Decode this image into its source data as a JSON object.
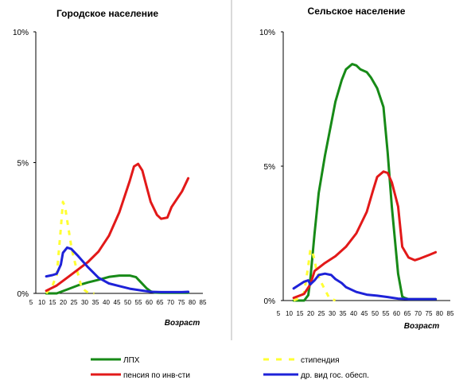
{
  "chart_data": [
    {
      "type": "line",
      "title": "Городское население",
      "xlabel": "Возраст",
      "ylabel": "",
      "xlim": [
        5,
        85
      ],
      "ylim": [
        0,
        10
      ],
      "x_ticks": [
        "5",
        "10",
        "15",
        "20",
        "25",
        "30",
        "35",
        "40",
        "45",
        "50",
        "55",
        "60",
        "65",
        "70",
        "75",
        "80",
        "85"
      ],
      "y_ticks": [
        {
          "value": 0,
          "label": "0%"
        },
        {
          "value": 5,
          "label": "5%"
        },
        {
          "value": 10,
          "label": "10%"
        }
      ],
      "series": [
        {
          "key": "lph",
          "name": "ЛПХ",
          "x": [
            10,
            15,
            20,
            25,
            30,
            35,
            40,
            45,
            50,
            53,
            55,
            58,
            60,
            62,
            65,
            70,
            75,
            78
          ],
          "y": [
            0,
            0,
            0.15,
            0.3,
            0.42,
            0.52,
            0.63,
            0.68,
            0.68,
            0.62,
            0.45,
            0.2,
            0.08,
            0.03,
            0.02,
            0.02,
            0.02,
            0.02
          ]
        },
        {
          "key": "stipend",
          "name": "стипендия",
          "x": [
            10,
            13,
            15,
            17,
            18,
            19,
            20,
            21,
            22,
            23,
            25,
            27,
            30,
            33
          ],
          "y": [
            0,
            0.3,
            0.7,
            2.5,
            3.5,
            3.3,
            2.8,
            2.3,
            1.8,
            1.4,
            0.8,
            0.2,
            0.03,
            0
          ]
        },
        {
          "key": "pension",
          "name": "пенсия по инв-сти",
          "x": [
            10,
            15,
            20,
            25,
            30,
            35,
            40,
            45,
            50,
            52,
            54,
            56,
            58,
            60,
            63,
            65,
            68,
            70,
            75,
            78
          ],
          "y": [
            0.1,
            0.3,
            0.6,
            0.9,
            1.2,
            1.6,
            2.2,
            3.1,
            4.3,
            4.85,
            4.95,
            4.7,
            4.1,
            3.5,
            3.0,
            2.85,
            2.9,
            3.3,
            3.9,
            4.4
          ]
        },
        {
          "key": "other",
          "name": "др. вид гос. обесп.",
          "x": [
            10,
            13,
            15,
            17,
            18,
            20,
            22,
            25,
            30,
            35,
            40,
            45,
            50,
            55,
            60,
            65,
            70,
            75,
            78
          ],
          "y": [
            0.65,
            0.7,
            0.75,
            1.1,
            1.55,
            1.75,
            1.7,
            1.45,
            1.0,
            0.6,
            0.38,
            0.28,
            0.18,
            0.12,
            0.06,
            0.05,
            0.05,
            0.05,
            0.06
          ]
        }
      ]
    },
    {
      "type": "line",
      "title": "Сельское население",
      "xlabel": "Возраст",
      "ylabel": "",
      "xlim": [
        5,
        85
      ],
      "ylim": [
        0,
        10
      ],
      "x_ticks": [
        "5",
        "10",
        "15",
        "20",
        "25",
        "30",
        "35",
        "40",
        "45",
        "50",
        "55",
        "60",
        "65",
        "70",
        "75",
        "80",
        "85"
      ],
      "y_ticks": [
        {
          "value": 0,
          "label": "0%"
        },
        {
          "value": 5,
          "label": "5%"
        },
        {
          "value": 10,
          "label": "10%"
        }
      ],
      "series": [
        {
          "key": "lph",
          "name": "ЛПХ",
          "x": [
            10,
            15,
            17,
            18,
            20,
            22,
            25,
            28,
            30,
            33,
            35,
            38,
            40,
            42,
            45,
            47,
            50,
            53,
            55,
            57,
            60,
            62,
            63,
            65,
            70,
            78
          ],
          "y": [
            0,
            0,
            0.2,
            0.8,
            2.5,
            4,
            5.4,
            6.6,
            7.4,
            8.2,
            8.6,
            8.8,
            8.75,
            8.6,
            8.5,
            8.3,
            7.9,
            7.2,
            5.5,
            3.5,
            1.0,
            0.15,
            0.1,
            0.05,
            0.05,
            0.05
          ]
        },
        {
          "key": "stipend",
          "name": "стипендия",
          "x": [
            10,
            13,
            15,
            17,
            18,
            19,
            20,
            21,
            22,
            23,
            25,
            27,
            30
          ],
          "y": [
            0,
            0.1,
            0.3,
            1.3,
            1.9,
            1.8,
            1.5,
            1.1,
            0.9,
            0.7,
            0.4,
            0.1,
            0
          ]
        },
        {
          "key": "pension",
          "name": "пенсия по инв-сти",
          "x": [
            10,
            15,
            18,
            20,
            25,
            30,
            35,
            40,
            45,
            48,
            50,
            53,
            55,
            57,
            60,
            62,
            65,
            68,
            70,
            75,
            78
          ],
          "y": [
            0.1,
            0.25,
            0.6,
            1.1,
            1.4,
            1.65,
            2.0,
            2.5,
            3.3,
            4.1,
            4.6,
            4.8,
            4.75,
            4.4,
            3.5,
            2.0,
            1.6,
            1.5,
            1.55,
            1.7,
            1.8
          ]
        },
        {
          "key": "other",
          "name": "др. вид гос. обесп.",
          "x": [
            10,
            12,
            15,
            17,
            18,
            20,
            22,
            25,
            28,
            30,
            33,
            35,
            40,
            45,
            50,
            55,
            60,
            65,
            70,
            78
          ],
          "y": [
            0.45,
            0.55,
            0.7,
            0.75,
            0.6,
            0.75,
            0.95,
            1.0,
            0.95,
            0.8,
            0.65,
            0.5,
            0.32,
            0.22,
            0.18,
            0.13,
            0.07,
            0.05,
            0.05,
            0.05
          ]
        }
      ]
    }
  ],
  "legend": [
    {
      "key": "lph",
      "label": "ЛПХ",
      "color": "#178a17",
      "dash": false
    },
    {
      "key": "stipend",
      "label": "стипендия",
      "color": "#ffff33",
      "dash": true
    },
    {
      "key": "pension",
      "label": "пенсия по инв-сти",
      "color": "#e21919",
      "dash": false
    },
    {
      "key": "other",
      "label": "др. вид гос. обесп.",
      "color": "#1e22d8",
      "dash": false
    }
  ],
  "colors": {
    "lph": "#178a17",
    "stipend": "#ffff33",
    "pension": "#e21919",
    "other": "#1e22d8",
    "divider": "#b5b5b5"
  }
}
